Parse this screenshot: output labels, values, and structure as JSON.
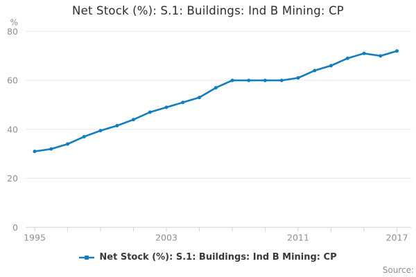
{
  "page": {
    "title": "Net Stock (%): S.1: Buildings: Ind B Mining: CP",
    "source_label": "Source:"
  },
  "legend": {
    "label": "Net Stock (%): S.1: Buildings: Ind B Mining: CP"
  },
  "colors": {
    "line": "#127dbe",
    "grid": "#e7e7e7",
    "axis": "#c9d6e3",
    "tick_text": "#8f8f8f",
    "title_text": "#2e2e2e",
    "legend_text": "#383838",
    "source_text": "#8f8f8f"
  },
  "chart_data": {
    "type": "line",
    "title": "Net Stock (%): S.1: Buildings: Ind B Mining: CP",
    "xlabel": "",
    "ylabel": "%",
    "ylim": [
      0,
      80
    ],
    "y_ticks": [
      0,
      20,
      40,
      60,
      80
    ],
    "x": [
      1995,
      1996,
      1997,
      1998,
      1999,
      2000,
      2001,
      2002,
      2003,
      2004,
      2005,
      2006,
      2007,
      2008,
      2009,
      2010,
      2011,
      2012,
      2013,
      2014,
      2015,
      2016,
      2017
    ],
    "x_tick_years": [
      1995,
      1997,
      1999,
      2001,
      2003,
      2005,
      2007,
      2009,
      2011,
      2013,
      2015,
      2017
    ],
    "x_label_years": [
      1995,
      2003,
      2011,
      2017
    ],
    "grid": true,
    "legend_position": "bottom",
    "series": [
      {
        "name": "Net Stock (%): S.1: Buildings: Ind B Mining: CP",
        "values": [
          31,
          32,
          34,
          37,
          39.5,
          41.5,
          44,
          47,
          49,
          51,
          53,
          57,
          60,
          60,
          60,
          60,
          61,
          64,
          66,
          69,
          71,
          70,
          72
        ]
      }
    ]
  }
}
